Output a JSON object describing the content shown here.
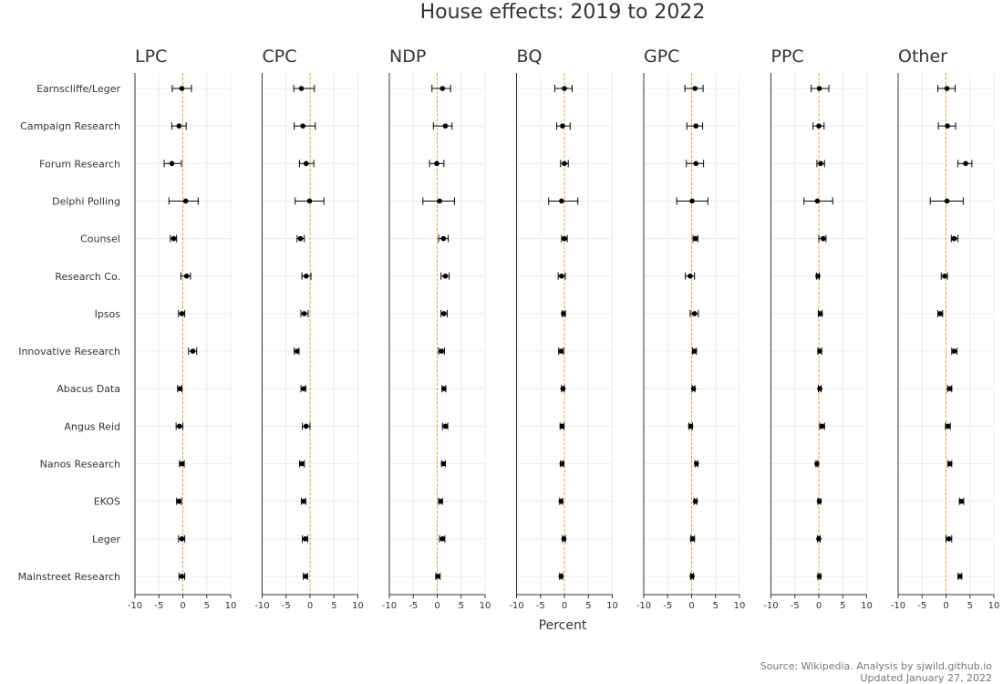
{
  "chart_data": {
    "type": "errorbar",
    "title": "House effects: 2019 to 2022",
    "xlabel": "Percent",
    "xlim": [
      -10,
      10
    ],
    "xticks": [
      -10,
      -5,
      0,
      5,
      10
    ],
    "grid": true,
    "reference_line": 0,
    "colors": {
      "point": "#000000",
      "reference": "#f0a030",
      "grid": "#ececec",
      "axis": "#333333"
    },
    "pollsters": [
      "Earnscliffe/Leger",
      "Campaign Research",
      "Forum Research",
      "Delphi Polling",
      "Counsel",
      "Research Co.",
      "Ipsos",
      "Innovative Research",
      "Abacus Data",
      "Angus Reid",
      "Nanos Research",
      "EKOS",
      "Leger",
      "Mainstreet Research"
    ],
    "panels": [
      {
        "name": "LPC",
        "values": [
          -0.2,
          -0.8,
          -2.3,
          0.6,
          -1.9,
          0.8,
          -0.2,
          2.1,
          -0.6,
          -0.7,
          -0.2,
          -0.8,
          -0.2,
          -0.2
        ],
        "lower": [
          -2.2,
          -2.3,
          -3.9,
          -2.9,
          -2.6,
          -0.4,
          -0.9,
          1.2,
          -1.1,
          -1.4,
          -0.7,
          -1.3,
          -0.9,
          -0.8
        ],
        "upper": [
          1.8,
          0.7,
          -0.3,
          3.2,
          -1.3,
          1.6,
          0.4,
          2.9,
          -0.2,
          0.0,
          0.3,
          -0.3,
          0.4,
          0.4
        ]
      },
      {
        "name": "CPC",
        "values": [
          -1.8,
          -1.5,
          -0.8,
          -0.1,
          -2.0,
          -0.8,
          -1.2,
          -2.7,
          -1.3,
          -0.8,
          -1.7,
          -1.3,
          -1.0,
          -0.9
        ],
        "lower": [
          -3.4,
          -3.3,
          -2.2,
          -3.1,
          -2.7,
          -1.7,
          -1.9,
          -3.3,
          -1.9,
          -1.6,
          -2.2,
          -1.8,
          -1.6,
          -1.4
        ],
        "upper": [
          0.9,
          1.1,
          0.8,
          2.9,
          -1.2,
          0.2,
          -0.4,
          -2.3,
          -0.9,
          0.0,
          -1.2,
          -0.9,
          -0.5,
          -0.5
        ]
      },
      {
        "name": "NDP",
        "values": [
          1.1,
          1.7,
          -0.1,
          0.5,
          1.3,
          1.7,
          1.4,
          0.9,
          1.4,
          1.7,
          1.3,
          0.7,
          1.1,
          0.1
        ],
        "lower": [
          -1.1,
          -0.8,
          -1.6,
          -3.0,
          0.3,
          0.8,
          0.8,
          0.3,
          1.0,
          1.1,
          0.9,
          0.3,
          0.5,
          -0.3
        ],
        "upper": [
          2.8,
          3.1,
          1.4,
          3.6,
          2.3,
          2.5,
          2.1,
          1.5,
          1.8,
          2.2,
          1.7,
          1.1,
          1.6,
          0.6
        ]
      },
      {
        "name": "BQ",
        "values": [
          0.0,
          -0.4,
          0.0,
          -0.6,
          0.0,
          -0.6,
          -0.2,
          -0.7,
          -0.3,
          -0.5,
          -0.5,
          -0.7,
          -0.1,
          -0.7
        ],
        "lower": [
          -2.0,
          -1.6,
          -0.8,
          -3.3,
          -0.6,
          -1.3,
          -0.5,
          -1.2,
          -0.6,
          -0.9,
          -0.8,
          -1.0,
          -0.4,
          -1.0
        ],
        "upper": [
          1.6,
          1.2,
          0.8,
          2.8,
          0.6,
          0.2,
          0.2,
          -0.2,
          0.0,
          -0.1,
          -0.2,
          -0.4,
          0.2,
          -0.4
        ]
      },
      {
        "name": "GPC",
        "values": [
          0.7,
          0.9,
          0.9,
          0.1,
          0.8,
          -0.3,
          0.6,
          0.6,
          0.4,
          -0.2,
          1.0,
          0.8,
          0.2,
          0.1
        ],
        "lower": [
          -1.4,
          -1.0,
          -1.1,
          -3.1,
          0.3,
          -1.3,
          -0.3,
          0.2,
          0.1,
          -0.6,
          0.7,
          0.5,
          -0.2,
          -0.2
        ],
        "upper": [
          2.4,
          2.3,
          2.5,
          3.4,
          1.3,
          0.6,
          1.4,
          1.0,
          0.7,
          0.2,
          1.3,
          1.1,
          0.6,
          0.4
        ]
      },
      {
        "name": "PPC",
        "values": [
          0.1,
          0.0,
          0.4,
          -0.3,
          0.9,
          -0.2,
          0.3,
          0.2,
          0.2,
          0.7,
          -0.4,
          0.1,
          0.0,
          0.1
        ],
        "lower": [
          -1.6,
          -1.2,
          -0.4,
          -3.1,
          0.0,
          -0.5,
          -0.1,
          -0.2,
          -0.1,
          0.2,
          -0.6,
          -0.2,
          -0.3,
          -0.2
        ],
        "upper": [
          2.1,
          1.1,
          1.2,
          2.9,
          1.5,
          0.1,
          0.7,
          0.6,
          0.5,
          1.2,
          -0.2,
          0.4,
          0.3,
          0.4
        ]
      },
      {
        "name": "Other",
        "values": [
          0.2,
          0.3,
          4.1,
          0.2,
          1.7,
          -0.3,
          -1.2,
          1.7,
          0.8,
          0.4,
          0.8,
          3.2,
          0.6,
          2.9
        ],
        "lower": [
          -1.7,
          -1.6,
          2.5,
          -3.3,
          1.1,
          -1.0,
          -1.7,
          1.2,
          0.3,
          -0.1,
          0.4,
          2.8,
          0.0,
          2.5
        ],
        "upper": [
          1.9,
          2.0,
          5.4,
          3.6,
          2.5,
          0.3,
          -0.7,
          2.3,
          1.2,
          0.9,
          1.2,
          3.7,
          1.2,
          3.3
        ]
      }
    ]
  },
  "footer": {
    "source": "Source: Wikipedia. Analysis by sjwild.github.io",
    "updated": "Updated January 27, 2022"
  }
}
